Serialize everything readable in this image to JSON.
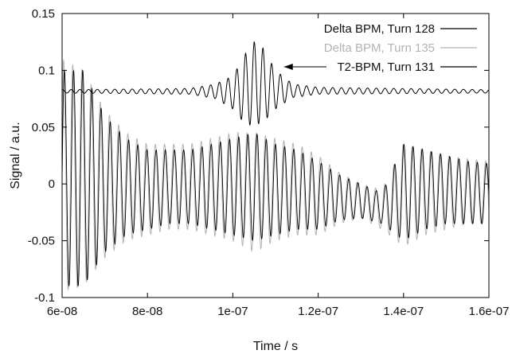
{
  "chart_data": {
    "type": "line",
    "title": "",
    "xlabel": "Time / s",
    "ylabel": "Signal / a.u.",
    "xlim": [
      6e-08,
      1.6e-07
    ],
    "ylim": [
      -0.1,
      0.15
    ],
    "x_ticks": [
      6e-08,
      8e-08,
      1e-07,
      1.2e-07,
      1.4e-07,
      1.6e-07
    ],
    "x_tick_labels": [
      "6e-08",
      "8e-08",
      "1e-07",
      "1.2e-07",
      "1.4e-07",
      "1.6e-07"
    ],
    "y_ticks": [
      -0.1,
      -0.05,
      0,
      0.05,
      0.1,
      0.15
    ],
    "y_tick_labels": [
      "-0.1",
      "-0.05",
      "0",
      "0.05",
      "0.1",
      "0.15"
    ],
    "grid": false,
    "legend_position": "top-right",
    "annotation": {
      "text": "",
      "arrow": "points left from the T2-BPM legend entry to the burst near x = 1.05e-07"
    },
    "series": [
      {
        "name": "Delta BPM, Turn 128",
        "color": "#000000",
        "x": [
          6e-08,
          6.5e-08,
          7e-08,
          7.5e-08,
          8e-08,
          8.5e-08,
          9e-08,
          9.5e-08,
          1e-07,
          1.05e-07,
          1.1e-07,
          1.15e-07,
          1.2e-07,
          1.25e-07,
          1.3e-07,
          1.35e-07,
          1.4e-07,
          1.45e-07,
          1.5e-07,
          1.55e-07,
          1.6e-07
        ],
        "envelope_upper": [
          0.1,
          0.1,
          0.06,
          0.04,
          0.03,
          0.03,
          0.03,
          0.035,
          0.04,
          0.045,
          0.035,
          0.03,
          0.02,
          0.008,
          0.0,
          -0.008,
          0.035,
          0.03,
          0.025,
          0.02,
          0.018
        ],
        "envelope_lower": [
          -0.09,
          -0.09,
          -0.06,
          -0.045,
          -0.04,
          -0.035,
          -0.035,
          -0.04,
          -0.045,
          -0.05,
          -0.045,
          -0.04,
          -0.04,
          -0.032,
          -0.03,
          -0.035,
          -0.05,
          -0.04,
          -0.035,
          -0.035,
          -0.035
        ]
      },
      {
        "name": "Delta BPM, Turn 135",
        "color": "#b3b3b3",
        "x": [
          6e-08,
          6.5e-08,
          7e-08,
          7.5e-08,
          8e-08,
          8.5e-08,
          9e-08,
          9.5e-08,
          1e-07,
          1.05e-07,
          1.1e-07,
          1.15e-07,
          1.2e-07,
          1.25e-07,
          1.3e-07,
          1.35e-07,
          1.4e-07,
          1.45e-07,
          1.5e-07,
          1.55e-07,
          1.6e-07
        ],
        "envelope_upper": [
          0.11,
          0.1,
          0.065,
          0.045,
          0.035,
          0.035,
          0.035,
          0.04,
          0.045,
          0.045,
          0.04,
          0.035,
          0.025,
          0.01,
          0.0,
          -0.005,
          0.035,
          0.03,
          0.025,
          0.022,
          0.02
        ],
        "envelope_lower": [
          -0.095,
          -0.09,
          -0.065,
          -0.05,
          -0.045,
          -0.04,
          -0.04,
          -0.045,
          -0.05,
          -0.06,
          -0.05,
          -0.045,
          -0.045,
          -0.035,
          -0.03,
          -0.04,
          -0.055,
          -0.045,
          -0.04,
          -0.035,
          -0.035
        ]
      },
      {
        "name": "T2-BPM, Turn 131",
        "color": "#000000",
        "baseline": 0.082,
        "burst_center": 1.05e-07,
        "burst_amplitude": 0.045,
        "x": [
          6e-08,
          9e-08,
          9.6e-08,
          1e-07,
          1.03e-07,
          1.05e-07,
          1.07e-07,
          1.1e-07,
          1.14e-07,
          1.2e-07,
          1.6e-07
        ],
        "y_max": [
          0.083,
          0.084,
          0.088,
          0.095,
          0.115,
          0.125,
          0.12,
          0.1,
          0.088,
          0.085,
          0.083
        ],
        "y_min": [
          0.08,
          0.079,
          0.075,
          0.066,
          0.052,
          0.052,
          0.054,
          0.066,
          0.076,
          0.079,
          0.08
        ]
      }
    ]
  }
}
